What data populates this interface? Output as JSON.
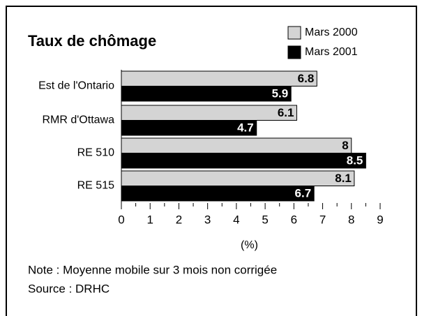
{
  "chart_data": {
    "type": "bar",
    "orientation": "horizontal",
    "title": "Taux de chômage",
    "categories": [
      "Est de l'Ontario",
      "RMR d'Ottawa",
      "RE 510",
      "RE 515"
    ],
    "series": [
      {
        "name": "Mars 2000",
        "color": "#d4d4d4",
        "values": [
          6.8,
          6.1,
          8,
          8.1
        ]
      },
      {
        "name": "Mars 2001",
        "color": "#000000",
        "values": [
          5.9,
          4.7,
          8.5,
          6.7
        ]
      }
    ],
    "xlim": [
      0,
      9
    ],
    "xticks": [
      0,
      1,
      2,
      3,
      4,
      5,
      6,
      7,
      8,
      9
    ],
    "x_label": "(%)",
    "notes": [
      "Note : Moyenne mobile sur 3 mois non corrigée",
      "Source : DRHC"
    ]
  }
}
